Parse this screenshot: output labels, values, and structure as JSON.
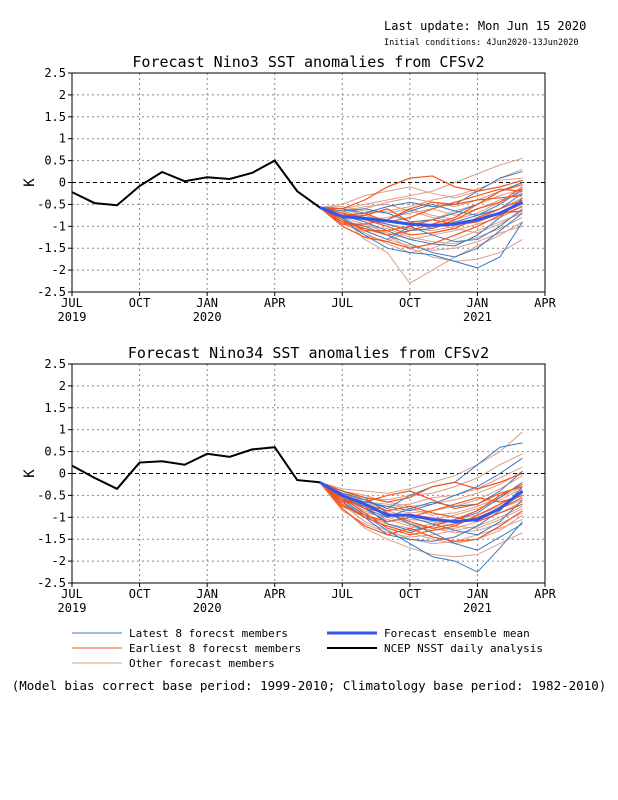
{
  "header": {
    "last_update": "Last update: Mon Jun 15 2020",
    "initial_conditions": "Initial conditions: 4Jun2020-13Jun2020"
  },
  "chart_data": [
    {
      "type": "line",
      "title": "Forecast Nino3 SST anomalies from CFSv2",
      "ylabel": "K",
      "ylim": [
        -2.5,
        2.5
      ],
      "yticks": [
        "2.5",
        "2",
        "1.5",
        "1",
        "0.5",
        "0",
        "-0.5",
        "-1",
        "-1.5",
        "-2",
        "-2.5"
      ],
      "xlim": [
        0,
        21
      ],
      "xticks": [
        {
          "label": "JUL",
          "sub": "2019"
        },
        {
          "label": "OCT",
          "sub": ""
        },
        {
          "label": "JAN",
          "sub": "2020"
        },
        {
          "label": "APR",
          "sub": ""
        },
        {
          "label": "JUL",
          "sub": ""
        },
        {
          "label": "OCT",
          "sub": ""
        },
        {
          "label": "JAN",
          "sub": "2021"
        },
        {
          "label": "APR",
          "sub": ""
        }
      ],
      "grid": true,
      "analysis": {
        "x": [
          0,
          1,
          2,
          3,
          4,
          5,
          6,
          7,
          8,
          9,
          10,
          11
        ],
        "y": [
          -0.22,
          -0.47,
          -0.52,
          -0.08,
          0.24,
          0.03,
          0.12,
          0.08,
          0.22,
          0.5,
          -0.2,
          -0.57
        ]
      },
      "forecast_x": [
        11,
        12,
        13,
        14,
        15,
        16,
        17,
        18,
        19,
        20
      ],
      "ensemble_mean": [
        -0.57,
        -0.78,
        -0.82,
        -0.88,
        -0.95,
        -0.98,
        -0.95,
        -0.85,
        -0.7,
        -0.45
      ],
      "latest_members": [
        [
          -0.57,
          -0.75,
          -0.9,
          -1.1,
          -1.3,
          -1.4,
          -1.45,
          -1.2,
          -0.8,
          -0.35
        ],
        [
          -0.57,
          -0.6,
          -0.7,
          -0.55,
          -0.45,
          -0.55,
          -0.5,
          -0.2,
          0.1,
          0.25
        ],
        [
          -0.57,
          -0.85,
          -1.2,
          -1.5,
          -1.6,
          -1.65,
          -1.8,
          -1.95,
          -1.7,
          -0.9
        ],
        [
          -0.57,
          -0.7,
          -0.8,
          -0.85,
          -0.65,
          -0.5,
          -0.65,
          -0.75,
          -0.6,
          -0.25
        ],
        [
          -0.57,
          -0.9,
          -1.0,
          -1.2,
          -1.4,
          -1.6,
          -1.7,
          -1.5,
          -1.1,
          -0.7
        ],
        [
          -0.57,
          -0.65,
          -0.6,
          -0.7,
          -0.9,
          -0.85,
          -0.7,
          -0.5,
          -0.2,
          0.0
        ],
        [
          -0.57,
          -0.8,
          -1.1,
          -1.3,
          -1.0,
          -1.2,
          -1.35,
          -1.3,
          -1.0,
          -0.6
        ],
        [
          -0.57,
          -0.75,
          -0.85,
          -0.95,
          -1.1,
          -1.05,
          -0.9,
          -0.75,
          -0.5,
          -0.15
        ]
      ],
      "earliest_members": [
        [
          -0.57,
          -0.9,
          -1.05,
          -1.2,
          -1.1,
          -0.95,
          -0.8,
          -0.5,
          -0.2,
          -0.05
        ],
        [
          -0.57,
          -0.6,
          -0.4,
          -0.1,
          0.1,
          0.15,
          -0.1,
          -0.2,
          -0.1,
          0.05
        ],
        [
          -0.57,
          -1.0,
          -1.25,
          -1.35,
          -1.5,
          -1.4,
          -1.2,
          -1.0,
          -0.75,
          -0.55
        ],
        [
          -0.57,
          -0.75,
          -0.7,
          -0.9,
          -0.8,
          -0.6,
          -0.45,
          -0.3,
          -0.15,
          -0.2
        ],
        [
          -0.57,
          -0.85,
          -1.1,
          -1.1,
          -1.0,
          -0.85,
          -0.95,
          -0.9,
          -0.7,
          -0.65
        ],
        [
          -0.57,
          -0.95,
          -0.95,
          -0.85,
          -0.6,
          -0.45,
          -0.5,
          -0.4,
          -0.35,
          -0.3
        ],
        [
          -0.57,
          -0.7,
          -0.85,
          -1.0,
          -1.2,
          -1.15,
          -1.05,
          -0.8,
          -0.6,
          -0.4
        ],
        [
          -0.57,
          -0.8,
          -0.75,
          -0.6,
          -0.9,
          -1.05,
          -0.85,
          -0.6,
          -0.45,
          -0.1
        ]
      ],
      "other_members": [
        [
          -0.57,
          -0.5,
          -0.3,
          -0.2,
          -0.1,
          -0.25,
          -0.35,
          -0.2,
          0.1,
          0.3
        ],
        [
          -0.57,
          -0.8,
          -1.3,
          -1.6,
          -2.3,
          -2.0,
          -1.7,
          -1.45,
          -1.2,
          -0.9
        ],
        [
          -0.57,
          -0.6,
          -0.5,
          -0.4,
          -0.3,
          -0.2,
          0.0,
          0.2,
          0.4,
          0.55
        ],
        [
          -0.57,
          -0.7,
          -0.9,
          -1.2,
          -1.5,
          -1.7,
          -1.8,
          -1.75,
          -1.6,
          -1.3
        ],
        [
          -0.57,
          -0.75,
          -0.7,
          -0.65,
          -0.55,
          -0.4,
          -0.3,
          -0.15,
          0.05,
          0.1
        ],
        [
          -0.57,
          -0.65,
          -0.8,
          -0.95,
          -1.05,
          -1.1,
          -1.0,
          -0.9,
          -0.7,
          -0.5
        ],
        [
          -0.57,
          -0.9,
          -1.15,
          -1.4,
          -1.6,
          -1.5,
          -1.3,
          -1.1,
          -0.9,
          -0.7
        ],
        [
          -0.57,
          -0.55,
          -0.65,
          -0.7,
          -0.6,
          -0.75,
          -0.85,
          -0.7,
          -0.45,
          -0.2
        ],
        [
          -0.57,
          -0.85,
          -1.0,
          -1.05,
          -1.25,
          -1.35,
          -1.4,
          -1.25,
          -1.05,
          -0.8
        ],
        [
          -0.57,
          -0.7,
          -0.6,
          -0.45,
          -0.35,
          -0.45,
          -0.55,
          -0.4,
          -0.2,
          0.0
        ],
        [
          -0.57,
          -0.95,
          -1.1,
          -1.3,
          -1.45,
          -1.55,
          -1.5,
          -1.35,
          -1.15,
          -1.0
        ],
        [
          -0.57,
          -0.6,
          -0.75,
          -0.9,
          -0.95,
          -0.85,
          -0.65,
          -0.5,
          -0.3,
          -0.15
        ],
        [
          -0.57,
          -0.8,
          -0.95,
          -1.15,
          -1.3,
          -1.2,
          -1.1,
          -0.95,
          -0.8,
          -0.55
        ],
        [
          -0.57,
          -0.75,
          -0.85,
          -0.8,
          -0.7,
          -0.6,
          -0.75,
          -0.6,
          -0.4,
          -0.25
        ],
        [
          -0.57,
          -0.65,
          -0.55,
          -0.5,
          -0.65,
          -0.8,
          -0.9,
          -0.85,
          -0.6,
          -0.35
        ],
        [
          -0.57,
          -0.9,
          -1.2,
          -1.35,
          -1.1,
          -0.95,
          -1.05,
          -1.15,
          -0.95,
          -0.65
        ]
      ]
    },
    {
      "type": "line",
      "title": "Forecast Nino34 SST anomalies from CFSv2",
      "ylabel": "K",
      "ylim": [
        -2.5,
        2.5
      ],
      "yticks": [
        "2.5",
        "2",
        "1.5",
        "1",
        "0.5",
        "0",
        "-0.5",
        "-1",
        "-1.5",
        "-2",
        "-2.5"
      ],
      "xlim": [
        0,
        21
      ],
      "xticks": [
        {
          "label": "JUL",
          "sub": "2019"
        },
        {
          "label": "OCT",
          "sub": ""
        },
        {
          "label": "JAN",
          "sub": "2020"
        },
        {
          "label": "APR",
          "sub": ""
        },
        {
          "label": "JUL",
          "sub": ""
        },
        {
          "label": "OCT",
          "sub": ""
        },
        {
          "label": "JAN",
          "sub": "2021"
        },
        {
          "label": "APR",
          "sub": ""
        }
      ],
      "grid": true,
      "analysis": {
        "x": [
          0,
          1,
          2,
          3,
          4,
          5,
          6,
          7,
          8,
          9,
          10,
          11
        ],
        "y": [
          0.18,
          -0.1,
          -0.35,
          0.25,
          0.28,
          0.2,
          0.45,
          0.38,
          0.55,
          0.6,
          -0.15,
          -0.2
        ]
      },
      "forecast_x": [
        11,
        12,
        13,
        14,
        15,
        16,
        17,
        18,
        19,
        20
      ],
      "ensemble_mean": [
        -0.2,
        -0.5,
        -0.7,
        -0.95,
        -0.95,
        -1.05,
        -1.1,
        -1.05,
        -0.8,
        -0.4
      ],
      "latest_members": [
        [
          -0.2,
          -0.45,
          -0.6,
          -0.8,
          -0.5,
          -0.3,
          -0.2,
          0.2,
          0.6,
          0.7
        ],
        [
          -0.2,
          -0.6,
          -0.95,
          -1.3,
          -1.6,
          -1.9,
          -2.0,
          -2.25,
          -1.7,
          -1.1
        ],
        [
          -0.2,
          -0.55,
          -0.8,
          -1.1,
          -1.0,
          -1.15,
          -1.3,
          -1.4,
          -1.1,
          -0.6
        ],
        [
          -0.2,
          -0.5,
          -0.65,
          -0.75,
          -0.85,
          -0.7,
          -0.5,
          -0.3,
          0.0,
          0.35
        ],
        [
          -0.2,
          -0.65,
          -1.0,
          -1.4,
          -1.5,
          -1.55,
          -1.45,
          -1.2,
          -0.85,
          -0.3
        ],
        [
          -0.2,
          -0.4,
          -0.55,
          -0.9,
          -1.15,
          -1.35,
          -1.6,
          -1.75,
          -1.45,
          -1.15
        ],
        [
          -0.2,
          -0.5,
          -0.8,
          -1.0,
          -0.8,
          -0.65,
          -0.75,
          -0.7,
          -0.4,
          0.05
        ],
        [
          -0.2,
          -0.6,
          -0.75,
          -1.15,
          -1.3,
          -1.2,
          -1.05,
          -0.9,
          -0.55,
          -0.2
        ]
      ],
      "earliest_members": [
        [
          -0.2,
          -0.7,
          -1.0,
          -1.2,
          -1.35,
          -1.2,
          -1.05,
          -0.85,
          -0.5,
          -0.25
        ],
        [
          -0.2,
          -0.4,
          -0.55,
          -0.65,
          -0.55,
          -0.3,
          -0.2,
          -0.35,
          -0.2,
          0.0
        ],
        [
          -0.2,
          -0.8,
          -1.2,
          -1.4,
          -1.25,
          -1.45,
          -1.55,
          -1.5,
          -1.2,
          -0.85
        ],
        [
          -0.2,
          -0.6,
          -0.65,
          -0.5,
          -0.4,
          -0.6,
          -0.8,
          -0.7,
          -0.45,
          -0.3
        ],
        [
          -0.2,
          -0.75,
          -0.95,
          -1.1,
          -1.0,
          -0.85,
          -0.7,
          -0.55,
          -0.65,
          -0.5
        ],
        [
          -0.2,
          -0.5,
          -0.8,
          -0.9,
          -1.1,
          -1.25,
          -1.15,
          -1.0,
          -0.8,
          -0.55
        ],
        [
          -0.2,
          -0.65,
          -0.7,
          -0.85,
          -0.75,
          -0.9,
          -1.0,
          -1.1,
          -0.9,
          -0.7
        ],
        [
          -0.2,
          -0.55,
          -0.9,
          -1.25,
          -1.4,
          -1.3,
          -1.2,
          -0.95,
          -0.7,
          -0.45
        ]
      ],
      "other_members": [
        [
          -0.2,
          -0.35,
          -0.4,
          -0.45,
          -0.35,
          -0.2,
          -0.05,
          0.2,
          0.5,
          0.95
        ],
        [
          -0.2,
          -0.8,
          -1.25,
          -1.5,
          -1.7,
          -1.85,
          -1.9,
          -1.85,
          -1.6,
          -1.35
        ],
        [
          -0.2,
          -0.45,
          -0.55,
          -0.6,
          -0.5,
          -0.45,
          -0.3,
          -0.1,
          0.2,
          0.45
        ],
        [
          -0.2,
          -0.7,
          -1.1,
          -1.3,
          -1.5,
          -1.6,
          -1.55,
          -1.4,
          -1.25,
          -1.05
        ],
        [
          -0.2,
          -0.5,
          -0.7,
          -0.75,
          -0.7,
          -0.55,
          -0.5,
          -0.35,
          -0.1,
          0.15
        ],
        [
          -0.2,
          -0.6,
          -0.85,
          -1.05,
          -1.2,
          -1.3,
          -1.25,
          -1.1,
          -0.9,
          -0.65
        ],
        [
          -0.2,
          -0.75,
          -1.0,
          -1.2,
          -1.35,
          -1.5,
          -1.6,
          -1.5,
          -1.3,
          -0.95
        ],
        [
          -0.2,
          -0.4,
          -0.6,
          -0.8,
          -0.9,
          -0.85,
          -0.75,
          -0.6,
          -0.35,
          -0.05
        ],
        [
          -0.2,
          -0.65,
          -0.95,
          -1.15,
          -1.25,
          -1.15,
          -1.05,
          -0.95,
          -0.75,
          -0.5
        ],
        [
          -0.2,
          -0.55,
          -0.75,
          -0.95,
          -1.05,
          -1.1,
          -1.2,
          -1.25,
          -1.05,
          -0.8
        ],
        [
          -0.2,
          -0.7,
          -0.9,
          -1.0,
          -0.95,
          -1.0,
          -1.1,
          -1.0,
          -0.8,
          -0.6
        ],
        [
          -0.2,
          -0.45,
          -0.65,
          -0.7,
          -0.8,
          -0.95,
          -0.9,
          -0.75,
          -0.55,
          -0.3
        ],
        [
          -0.2,
          -0.85,
          -1.15,
          -1.35,
          -1.45,
          -1.4,
          -1.3,
          -1.2,
          -1.0,
          -0.75
        ],
        [
          -0.2,
          -0.5,
          -0.6,
          -0.85,
          -1.0,
          -1.05,
          -0.95,
          -0.8,
          -0.6,
          -0.35
        ],
        [
          -0.2,
          -0.6,
          -0.8,
          -1.0,
          -1.15,
          -1.25,
          -1.35,
          -1.3,
          -1.15,
          -0.9
        ],
        [
          -0.2,
          -0.4,
          -0.5,
          -0.65,
          -0.75,
          -0.7,
          -0.6,
          -0.45,
          -0.25,
          0.05
        ]
      ]
    }
  ],
  "legend": [
    {
      "label": "Latest 8 forecst members",
      "color": "#3a78c2"
    },
    {
      "label": "Earliest 8 forecst members",
      "color": "#f2551e"
    },
    {
      "label": "Other forecast members",
      "color": "#d9a08a"
    },
    {
      "label": "Forecast ensemble mean",
      "color": "#3355ee"
    },
    {
      "label": "NCEP NSST daily analysis",
      "color": "#000000"
    }
  ],
  "footnote": "(Model bias correct base period: 1999-2010; Climatology base period: 1982-2010)"
}
